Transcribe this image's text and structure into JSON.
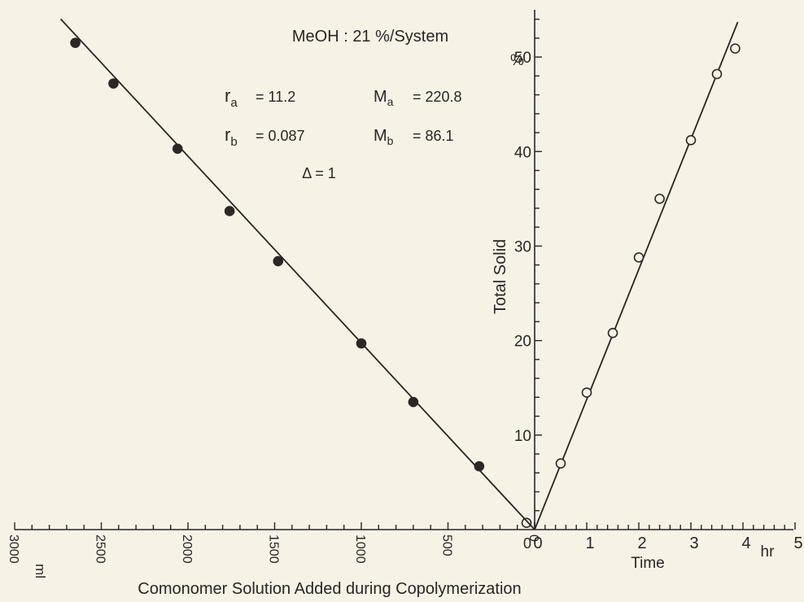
{
  "chart_data": [
    {
      "type": "scatter",
      "panel": "left",
      "xlabel": "Comonomer Solution Added during Copolymerization",
      "x_unit": "ml",
      "xlim": [
        3000,
        0
      ],
      "x_ticks": [
        "3000",
        "2500",
        "2000",
        "1500",
        "1000",
        "500",
        "0"
      ],
      "x_tick_values": [
        3000,
        2500,
        2000,
        1500,
        1000,
        500,
        0
      ],
      "shared_y_axis": "Total Solid (%)",
      "ylim": [
        0,
        55
      ],
      "series": [
        {
          "marker": "filled-circle",
          "points": [
            {
              "x": 2650,
              "y": 51.5
            },
            {
              "x": 2430,
              "y": 47.2
            },
            {
              "x": 2060,
              "y": 40.3
            },
            {
              "x": 1760,
              "y": 33.7
            },
            {
              "x": 1480,
              "y": 28.4
            },
            {
              "x": 1000,
              "y": 19.7
            },
            {
              "x": 700,
              "y": 13.5
            },
            {
              "x": 320,
              "y": 6.7
            },
            {
              "x": 0,
              "y": 0.2
            }
          ]
        }
      ],
      "fit_line": {
        "x": [
          2650,
          0
        ],
        "y": [
          52.3,
          0
        ]
      },
      "annotations": {
        "system": "MeOH : 21 %/System",
        "ra_label": "r",
        "ra_sub": "a",
        "ra_value": "= 11.2",
        "rb_label": "r",
        "rb_sub": "b",
        "rb_value": "= 0.087",
        "Ma_label": "M",
        "Ma_sub": "a",
        "Ma_value": "= 220.8",
        "Mb_label": "M",
        "Mb_sub": "b",
        "Mb_value": "= 86.1",
        "delta": "Δ = 1"
      }
    },
    {
      "type": "scatter",
      "panel": "right",
      "xlabel": "Time",
      "x_unit": "hr",
      "xlim": [
        0,
        5
      ],
      "x_ticks": [
        "0",
        "1",
        "2",
        "3",
        "4",
        "5"
      ],
      "x_tick_values": [
        0,
        1,
        2,
        3,
        4,
        5
      ],
      "ylabel": "Total Solid",
      "y_unit": "%",
      "ylim": [
        0,
        55
      ],
      "y_ticks": [
        "10",
        "20",
        "30",
        "40",
        "50"
      ],
      "y_tick_values": [
        10,
        20,
        30,
        40,
        50
      ],
      "series": [
        {
          "marker": "open-circle",
          "points": [
            {
              "x": 0.5,
              "y": 7.0
            },
            {
              "x": 1.0,
              "y": 14.5
            },
            {
              "x": 1.5,
              "y": 20.8
            },
            {
              "x": 2.0,
              "y": 28.8
            },
            {
              "x": 2.4,
              "y": 35.0
            },
            {
              "x": 3.0,
              "y": 41.2
            },
            {
              "x": 3.5,
              "y": 48.2
            },
            {
              "x": 3.85,
              "y": 50.9
            }
          ]
        }
      ],
      "fit_line": {
        "x": [
          0,
          3.9
        ],
        "y": [
          0,
          53.7
        ]
      }
    }
  ]
}
